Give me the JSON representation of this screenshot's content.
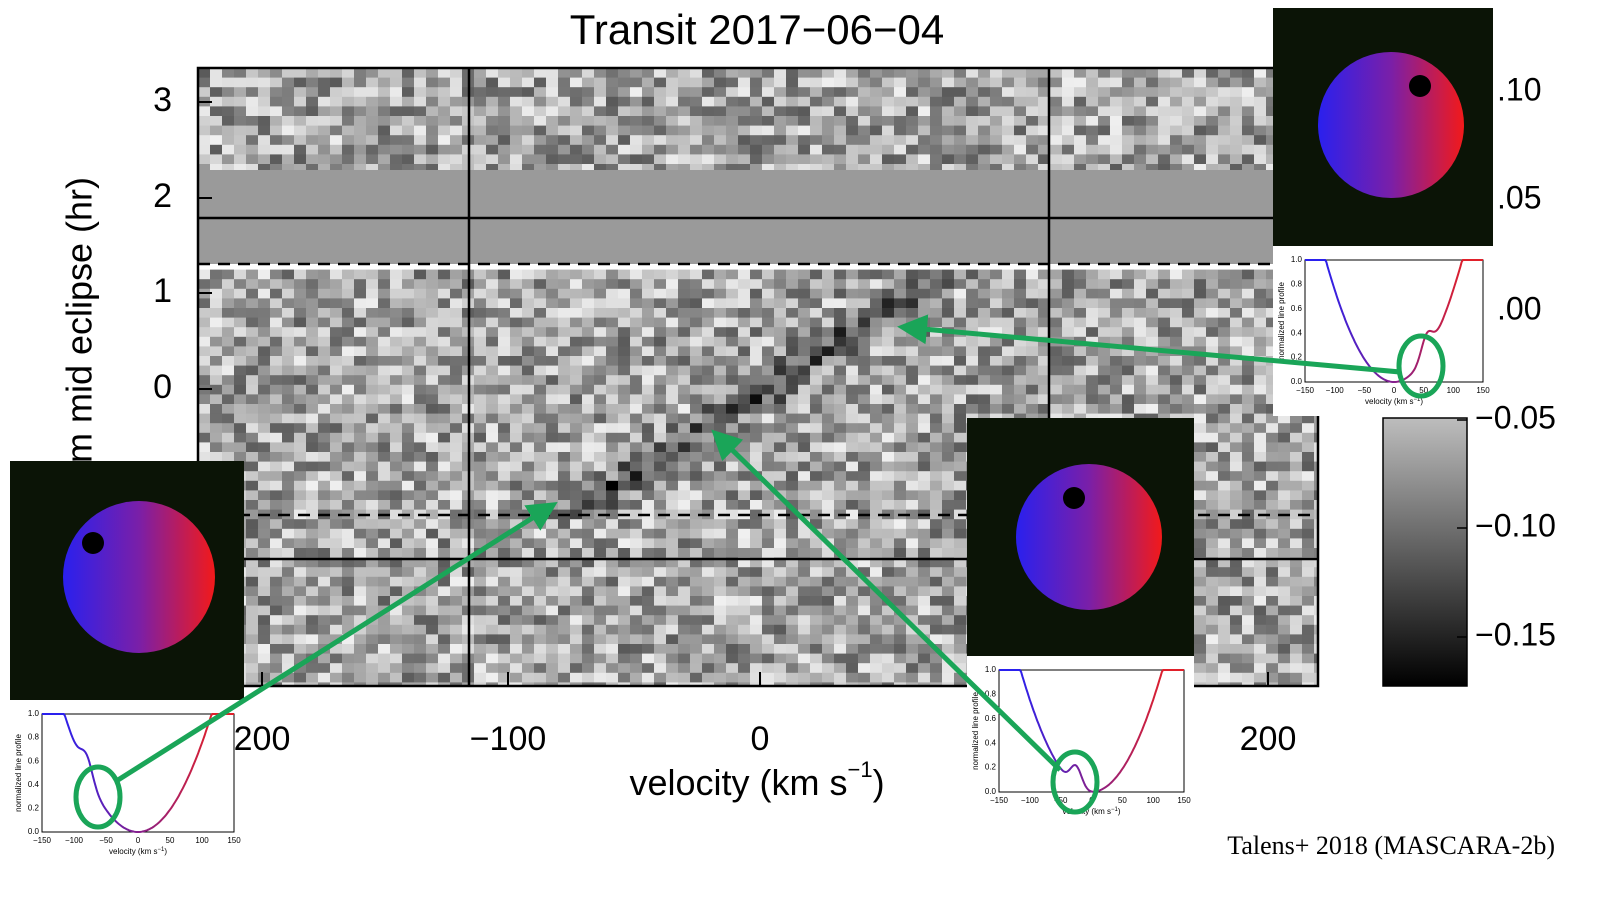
{
  "title": "Transit 2017−06−04",
  "y_axis": {
    "label": "m mid eclipse (hr)",
    "ticks": [
      "3",
      "2",
      "1",
      "0"
    ]
  },
  "x_axis": {
    "label": "velocity (km s",
    "label_sup": "−1",
    "label_end": ")",
    "ticks": [
      "200",
      "−100",
      "0",
      "200"
    ]
  },
  "right_axis_ticks": [
    ".10",
    ".05",
    ".00"
  ],
  "colorbar_ticks": [
    "−0.05",
    "−0.10",
    "−0.15"
  ],
  "profile": {
    "y_label": "normalized line profile",
    "y_ticks": [
      "0.0",
      "0.2",
      "0.4",
      "0.6",
      "0.8",
      "1.0"
    ],
    "x_ticks": [
      "−150",
      "−100",
      "−50",
      "0",
      "50",
      "100",
      "150"
    ],
    "x_label": "velocity (km s",
    "x_label_sup": "−1",
    "x_label_end": ")"
  },
  "credit": "Talens+ 2018 (MASCARA-2b)"
}
